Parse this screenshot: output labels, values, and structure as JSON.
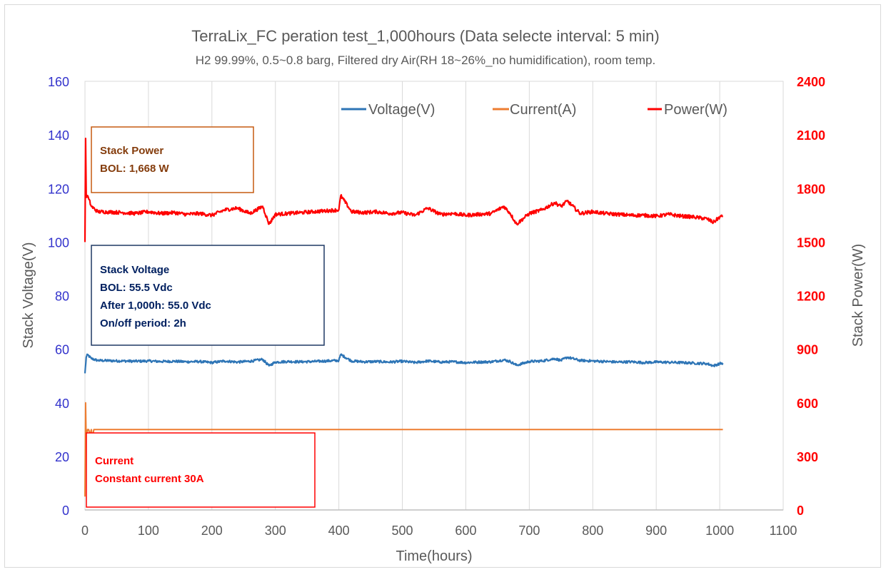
{
  "chart_data": {
    "type": "line",
    "title": "TerraLix_FC peration test_1,000hours (Data selecte interval: 5 min)",
    "subtitle": "H2 99.99%, 0.5~0.8 barg, Filtered dry Air(RH 18~26%_no humidification), room temp.",
    "xlabel": "Time(hours)",
    "ylabel_left": "Stack Voltage(V)",
    "ylabel_right": "Stack Power(W)",
    "xlim": [
      0,
      1100
    ],
    "ylim_left": [
      0,
      160
    ],
    "ylim_right": [
      0,
      2400
    ],
    "x_ticks": [
      "0",
      "100",
      "200",
      "300",
      "400",
      "500",
      "600",
      "700",
      "800",
      "900",
      "1000",
      "1100"
    ],
    "y_left_ticks": [
      "0",
      "20",
      "40",
      "60",
      "80",
      "100",
      "120",
      "140",
      "160"
    ],
    "y_right_ticks": [
      "0",
      "300",
      "600",
      "900",
      "1200",
      "1500",
      "1800",
      "2100",
      "2400"
    ],
    "grid": "vertical gridlines only",
    "legend_position": "top-right",
    "colors": {
      "voltage": "#2e75b6",
      "current": "#ed7d31",
      "power": "#ff0000",
      "left_axis": "#3333cc",
      "right_axis": "#ff0000",
      "note_power": "#843c0c",
      "note_voltage": "#002060",
      "note_current": "#ff0000",
      "box_power": "#c55a11",
      "box_voltage": "#1f3864"
    },
    "series": [
      {
        "name": "Voltage(V)",
        "axis": "left",
        "x": [
          0,
          2,
          4,
          6,
          10,
          20,
          40,
          60,
          80,
          100,
          120,
          140,
          160,
          180,
          200,
          220,
          240,
          260,
          280,
          290,
          300,
          320,
          340,
          360,
          380,
          400,
          403,
          420,
          440,
          460,
          480,
          500,
          520,
          540,
          560,
          580,
          600,
          620,
          640,
          660,
          670,
          680,
          700,
          720,
          740,
          750,
          760,
          780,
          800,
          820,
          840,
          860,
          880,
          900,
          920,
          940,
          960,
          980,
          990,
          1000,
          1005
        ],
        "y": [
          51,
          57,
          58,
          57.5,
          56.5,
          55.8,
          55.7,
          55.6,
          55.5,
          55.6,
          55.4,
          55.5,
          55.3,
          55.4,
          55.0,
          55.6,
          55.2,
          55.5,
          56.2,
          53.8,
          55.2,
          55.4,
          55.3,
          55.4,
          55.6,
          55.8,
          58.0,
          55.6,
          55.3,
          55.4,
          55.2,
          55.5,
          55.0,
          55.6,
          55.2,
          55.3,
          55.0,
          55.2,
          55.3,
          56.0,
          55.4,
          54.0,
          55.4,
          55.6,
          56.5,
          55.8,
          57.0,
          55.8,
          55.6,
          55.4,
          55.2,
          55.3,
          55.0,
          55.2,
          55.1,
          55.0,
          54.8,
          54.6,
          53.8,
          54.6,
          54.8
        ]
      },
      {
        "name": "Current(A)",
        "axis": "left",
        "x": [
          0,
          1,
          2,
          4,
          6,
          8,
          10,
          12,
          14,
          20,
          100,
          500,
          1000,
          1005
        ],
        "y": [
          5,
          40,
          25,
          30,
          30,
          28,
          30,
          27,
          30,
          30,
          30,
          30,
          30,
          30
        ]
      },
      {
        "name": "Power(W)",
        "axis": "right",
        "x": [
          0,
          1,
          2,
          4,
          6,
          10,
          20,
          40,
          60,
          80,
          100,
          120,
          140,
          160,
          180,
          200,
          220,
          240,
          260,
          280,
          290,
          300,
          320,
          340,
          360,
          380,
          400,
          403,
          420,
          440,
          460,
          480,
          500,
          520,
          540,
          560,
          580,
          600,
          620,
          640,
          660,
          670,
          680,
          700,
          720,
          740,
          750,
          760,
          780,
          800,
          820,
          840,
          860,
          880,
          900,
          920,
          940,
          960,
          980,
          990,
          1000,
          1005
        ],
        "y": [
          1500,
          2080,
          1750,
          1760,
          1740,
          1700,
          1670,
          1668,
          1665,
          1660,
          1670,
          1660,
          1665,
          1655,
          1660,
          1650,
          1680,
          1690,
          1660,
          1700,
          1600,
          1655,
          1660,
          1665,
          1670,
          1675,
          1680,
          1760,
          1670,
          1665,
          1670,
          1660,
          1665,
          1650,
          1690,
          1655,
          1660,
          1650,
          1655,
          1660,
          1700,
          1660,
          1600,
          1660,
          1680,
          1720,
          1700,
          1730,
          1660,
          1670,
          1660,
          1655,
          1650,
          1650,
          1645,
          1655,
          1645,
          1640,
          1630,
          1610,
          1640,
          1645
        ]
      }
    ],
    "annotations": [
      {
        "name": "power-note",
        "lines": [
          "Stack Power",
          "BOL: 1,668 W"
        ]
      },
      {
        "name": "voltage-note",
        "lines": [
          "Stack Voltage",
          "BOL: 55.5 Vdc",
          "After 1,000h: 55.0 Vdc",
          "On/off period: 2h"
        ]
      },
      {
        "name": "current-note",
        "lines": [
          "Current",
          "Constant current 30A"
        ]
      }
    ]
  }
}
